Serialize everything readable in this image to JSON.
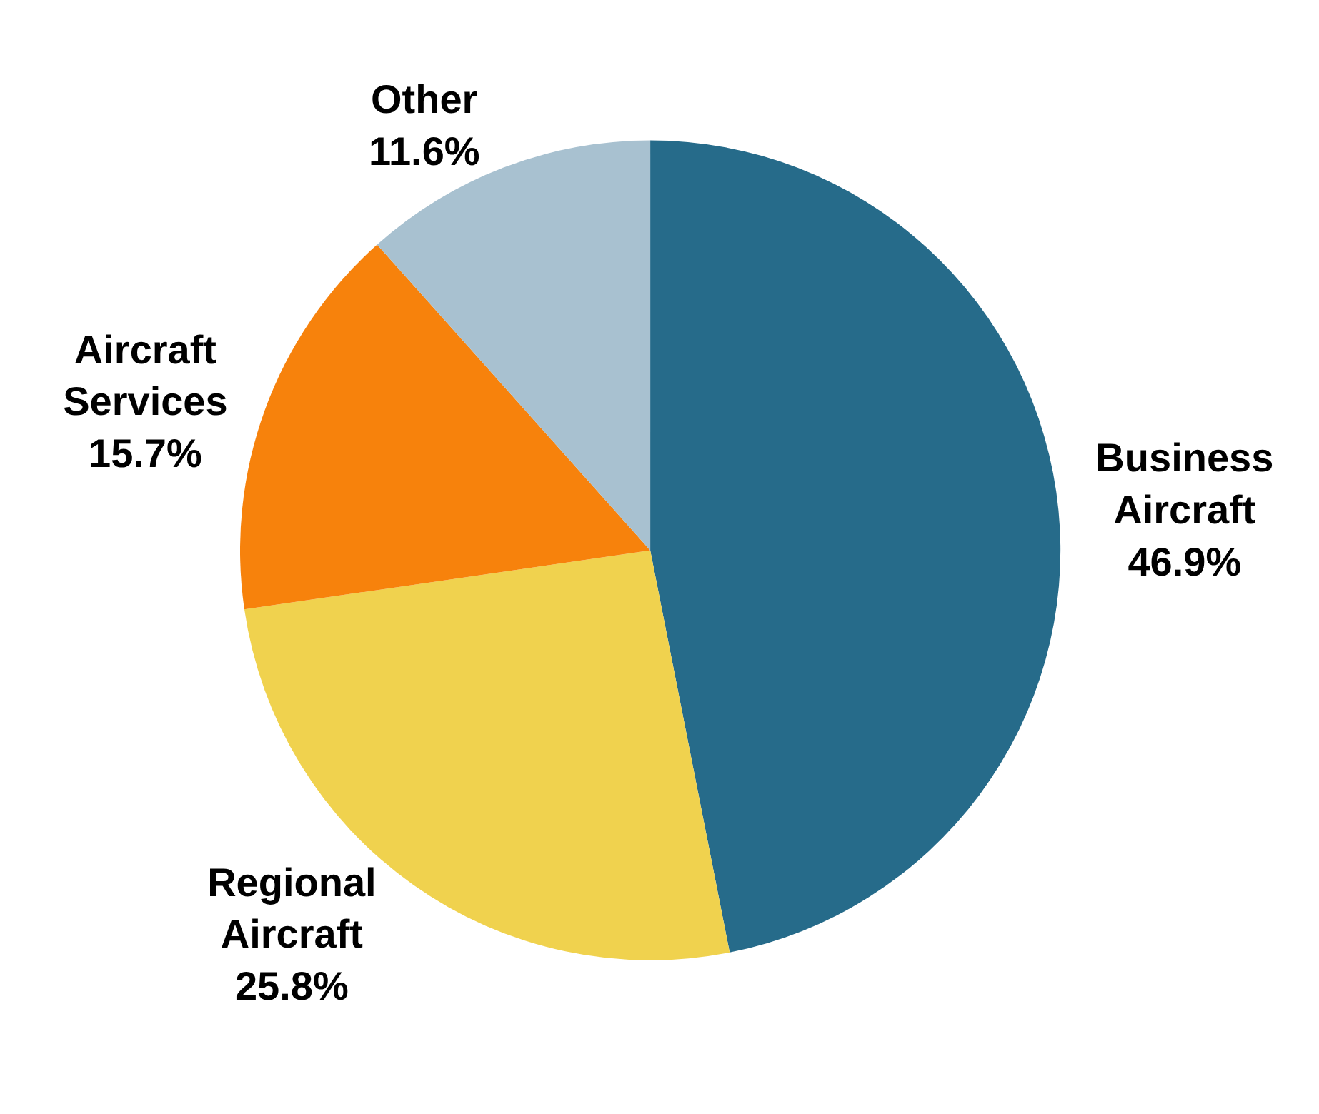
{
  "chart_data": {
    "type": "pie",
    "categories": [
      "Business Aircraft",
      "Regional Aircraft",
      "Aircraft Services",
      "Other"
    ],
    "values": [
      46.9,
      25.8,
      15.7,
      11.6
    ],
    "value_labels": [
      "46.9%",
      "25.8%",
      "15.7%",
      "11.6%"
    ],
    "colors": [
      "#266b8a",
      "#f0d24e",
      "#f7820c",
      "#a8c1d0"
    ],
    "legend": false
  }
}
